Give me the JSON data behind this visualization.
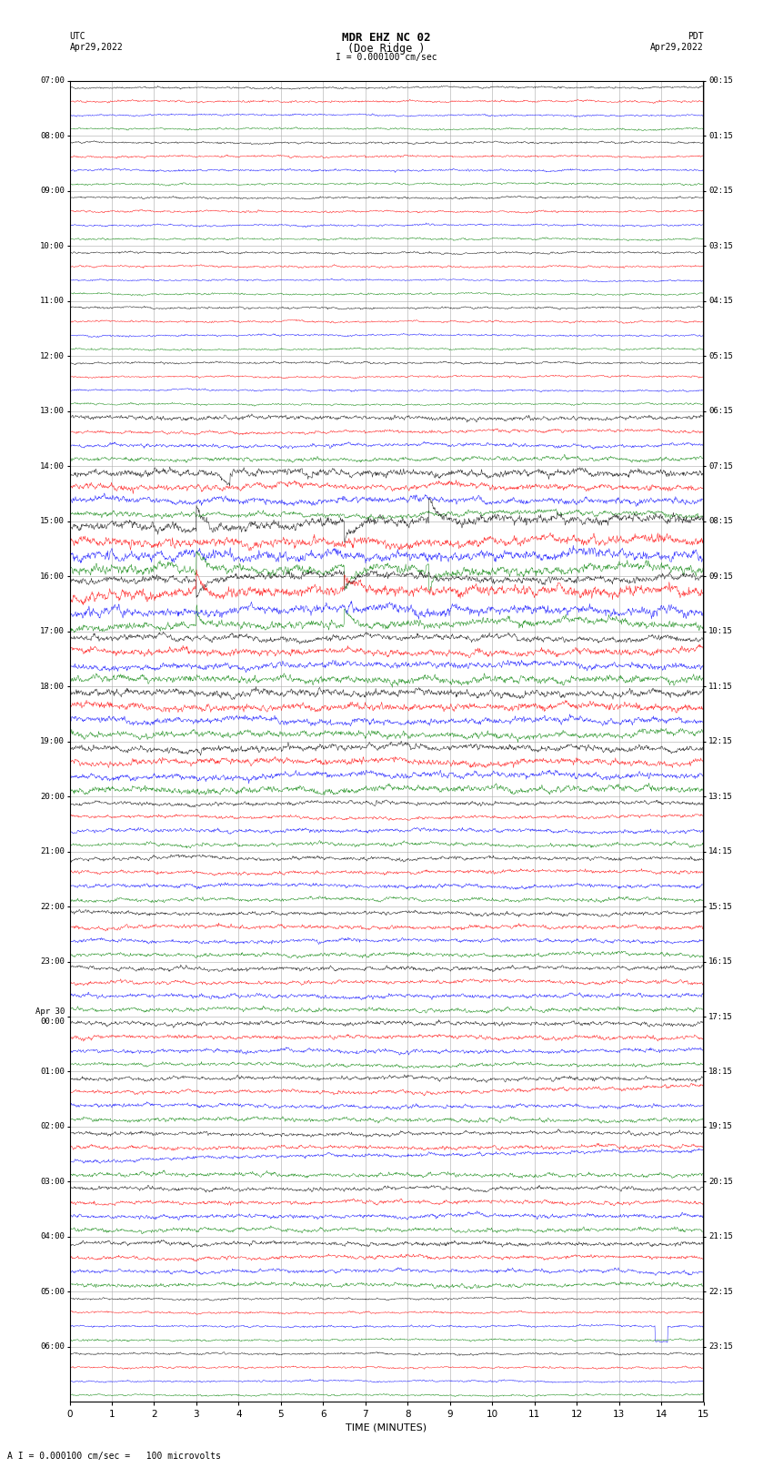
{
  "title_line1": "MDR EHZ NC 02",
  "title_line2": "(Doe Ridge )",
  "scale_label": "I = 0.000100 cm/sec",
  "left_header_1": "UTC",
  "left_header_2": "Apr29,2022",
  "right_header_1": "PDT",
  "right_header_2": "Apr29,2022",
  "bottom_label": "TIME (MINUTES)",
  "bottom_note": "A I = 0.000100 cm/sec =   100 microvolts",
  "utc_labels": [
    "07:00",
    "08:00",
    "09:00",
    "10:00",
    "11:00",
    "12:00",
    "13:00",
    "14:00",
    "15:00",
    "16:00",
    "17:00",
    "18:00",
    "19:00",
    "20:00",
    "21:00",
    "22:00",
    "23:00",
    "Apr 30\n00:00",
    "01:00",
    "02:00",
    "03:00",
    "04:00",
    "05:00",
    "06:00"
  ],
  "pdt_labels": [
    "00:15",
    "01:15",
    "02:15",
    "03:15",
    "04:15",
    "05:15",
    "06:15",
    "07:15",
    "08:15",
    "09:15",
    "10:15",
    "11:15",
    "12:15",
    "13:15",
    "14:15",
    "15:15",
    "16:15",
    "17:15",
    "18:15",
    "19:15",
    "20:15",
    "21:15",
    "22:15",
    "23:15"
  ],
  "n_hours": 24,
  "traces_per_hour": 4,
  "x_min": 0,
  "x_max": 15,
  "colors": [
    "black",
    "red",
    "blue",
    "green"
  ],
  "bg_color": "#ffffff",
  "grid_color": "#aaaaaa",
  "seed": 42,
  "fig_width": 8.5,
  "fig_height": 16.13,
  "dpi": 100
}
